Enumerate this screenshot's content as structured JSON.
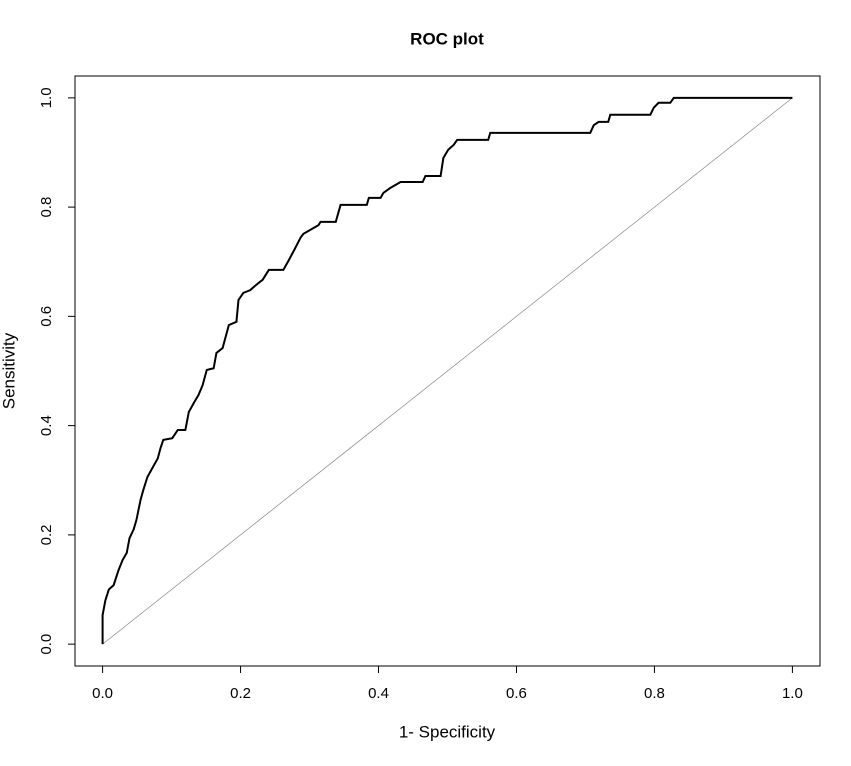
{
  "chart_data": {
    "type": "line",
    "title": "ROC plot",
    "x_label": "1- Specificity",
    "y_label": "Sensitivity",
    "xlim": [
      -0.04,
      1.04
    ],
    "ylim": [
      -0.04,
      1.04
    ],
    "xticks": [
      {
        "value": 0,
        "label": "0.0"
      },
      0.2,
      0.4,
      0.6,
      0.8,
      {
        "value": 1,
        "label": "1.0"
      }
    ],
    "yticks": [
      {
        "value": 0,
        "label": "0.0"
      },
      0.2,
      0.4,
      0.6,
      0.8,
      {
        "value": 1,
        "label": "1.0"
      }
    ],
    "series": [
      {
        "color": "#000000",
        "width": 2,
        "x": [
          0,
          0,
          0.004,
          0.009,
          0.016,
          0.023,
          0.029,
          0.035,
          0.039,
          0.045,
          0.049,
          0.055,
          0.059,
          0.065,
          0.072,
          0.08,
          0.084,
          0.088,
          0.101,
          0.109,
          0.12,
          0.125,
          0.132,
          0.139,
          0.145,
          0.151,
          0.161,
          0.165,
          0.174,
          0.183,
          0.194,
          0.197,
          0.204,
          0.214,
          0.222,
          0.232,
          0.241,
          0.262,
          0.27,
          0.278,
          0.287,
          0.291,
          0.313,
          0.316,
          0.338,
          0.345,
          0.383,
          0.386,
          0.403,
          0.407,
          0.417,
          0.432,
          0.464,
          0.468,
          0.49,
          0.494,
          0.501,
          0.509,
          0.514,
          0.559,
          0.562,
          0.707,
          0.712,
          0.719,
          0.733,
          0.736,
          0.794,
          0.799,
          0.806,
          0.823,
          0.828,
          1
        ],
        "values": [
          0,
          0.053,
          0.08,
          0.1,
          0.108,
          0.135,
          0.154,
          0.167,
          0.194,
          0.21,
          0.227,
          0.264,
          0.282,
          0.306,
          0.322,
          0.34,
          0.359,
          0.374,
          0.377,
          0.392,
          0.392,
          0.425,
          0.441,
          0.456,
          0.474,
          0.502,
          0.505,
          0.533,
          0.542,
          0.584,
          0.59,
          0.63,
          0.643,
          0.648,
          0.657,
          0.667,
          0.685,
          0.685,
          0.703,
          0.722,
          0.744,
          0.751,
          0.767,
          0.773,
          0.773,
          0.804,
          0.804,
          0.817,
          0.817,
          0.826,
          0.835,
          0.846,
          0.846,
          0.857,
          0.857,
          0.89,
          0.905,
          0.914,
          0.923,
          0.923,
          0.936,
          0.936,
          0.95,
          0.956,
          0.956,
          0.969,
          0.969,
          0.982,
          0.991,
          0.991,
          1,
          1
        ]
      },
      {
        "color": "#888888",
        "width": 0.7,
        "x": [
          0,
          1
        ],
        "values": [
          0,
          1
        ]
      }
    ]
  }
}
